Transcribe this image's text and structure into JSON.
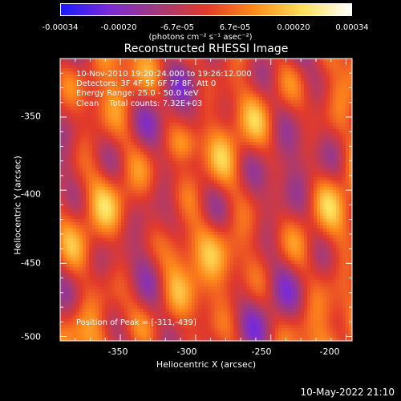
{
  "colorbar": {
    "ticks": [
      "-0.00034",
      "-0.00020",
      "-6.7e-05",
      "6.7e-05",
      "0.00020",
      "0.00034"
    ],
    "units": "(photons cm⁻² s⁻¹ asec⁻²)",
    "colors": [
      "#1a1aff",
      "#7a2bd6",
      "#a23a7a",
      "#e23a2a",
      "#ff8a1a",
      "#ffe05a",
      "#ffffff"
    ]
  },
  "chart_data": {
    "type": "heatmap",
    "title": "Reconstructed RHESSI Image",
    "xlabel": "Heliocentric X (arcsec)",
    "ylabel": "Heliocentric Y (arcsec)",
    "xlim": [
      -390,
      -196
    ],
    "ylim": [
      -503,
      -310
    ],
    "xticks": [
      -350,
      -300,
      -250,
      -200
    ],
    "yticks": [
      -350,
      -400,
      -450,
      -500
    ],
    "xtick_labels": [
      "-350",
      "-300",
      "-250",
      "-200"
    ],
    "ytick_labels": [
      "-350",
      "-400",
      "-450",
      "-500"
    ],
    "zlim": [
      -0.00034,
      0.00034
    ],
    "annotations": [
      "10-Nov-2010 19:20:24.000 to 19:26:12.000",
      "Detectors: 3F 4F 5F 6F 7F 8F, Att 0",
      "Energy Range: 25.0 - 50.0 keV",
      "Clean    Total counts: 7.32E+03"
    ],
    "peak_label": "Position of Peak = [-311,-439]",
    "peak": [
      -311,
      -439
    ]
  },
  "timestamp": "10-May-2022 21:10"
}
